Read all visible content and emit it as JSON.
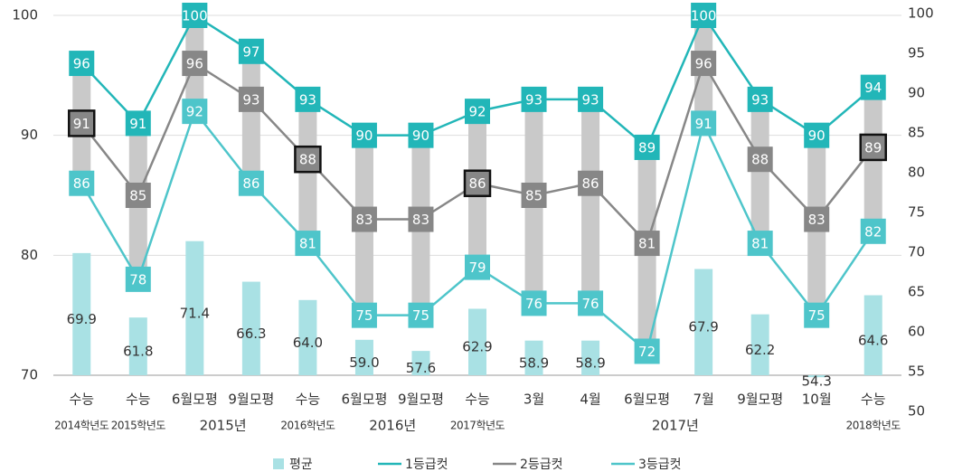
{
  "chart_data": {
    "type": "combo",
    "categories": [
      "수능",
      "수능",
      "6월모평",
      "9월모평",
      "수능",
      "6월모평",
      "9월모평",
      "수능",
      "3월",
      "4월",
      "6월모평",
      "7월",
      "9월모평",
      "10월",
      "수능"
    ],
    "groups": [
      {
        "label": "2014학년도",
        "span": [
          0,
          0
        ]
      },
      {
        "label": "2015학년도",
        "span": [
          1,
          1
        ]
      },
      {
        "label": "2015년",
        "span": [
          2,
          3
        ]
      },
      {
        "label": "2016학년도",
        "span": [
          4,
          4
        ]
      },
      {
        "label": "2016년",
        "span": [
          5,
          6
        ]
      },
      {
        "label": "2017학년도",
        "span": [
          7,
          7
        ]
      },
      {
        "label": "2017년",
        "span": [
          8,
          13
        ]
      },
      {
        "label": "2018학년도",
        "span": [
          14,
          14
        ]
      }
    ],
    "series": [
      {
        "name": "평균",
        "type": "bar",
        "axis": "y2",
        "color": "#a9e1e4",
        "values": [
          69.9,
          61.8,
          71.4,
          66.3,
          64.0,
          59.0,
          57.6,
          62.9,
          58.9,
          58.9,
          null,
          67.9,
          62.2,
          54.3,
          64.6
        ],
        "value_labels": [
          "69.9",
          "61.8",
          "71.4",
          "66.3",
          "64.0",
          "59.0",
          "57.6",
          "62.9",
          "58.9",
          "58.9",
          null,
          "67.9",
          "62.2",
          "54.3",
          "64.6"
        ]
      },
      {
        "name": "1등급컷",
        "type": "line",
        "color": "#22b6b8",
        "values": [
          96,
          91,
          100,
          97,
          93,
          90,
          90,
          92,
          93,
          93,
          89,
          100,
          93,
          90,
          94
        ]
      },
      {
        "name": "2등급컷",
        "type": "line",
        "color": "#878787",
        "values": [
          91,
          85,
          96,
          93,
          88,
          83,
          83,
          86,
          85,
          86,
          81,
          96,
          88,
          83,
          89
        ]
      },
      {
        "name": "3등급컷",
        "type": "line",
        "color": "#4ec5ca",
        "values": [
          86,
          78,
          92,
          86,
          81,
          75,
          75,
          79,
          76,
          76,
          72,
          91,
          81,
          75,
          82
        ]
      }
    ],
    "range_color": "#c9c9c9",
    "highlight": [
      0,
      4,
      7,
      14
    ],
    "ylim": [
      70,
      100
    ],
    "yticks": [
      70,
      80,
      90,
      100
    ],
    "y2lim": [
      50,
      100
    ],
    "y2ticks": [
      50,
      55,
      60,
      65,
      70,
      75,
      80,
      85,
      90,
      95,
      100
    ],
    "grid": true,
    "legend": "bottom"
  }
}
